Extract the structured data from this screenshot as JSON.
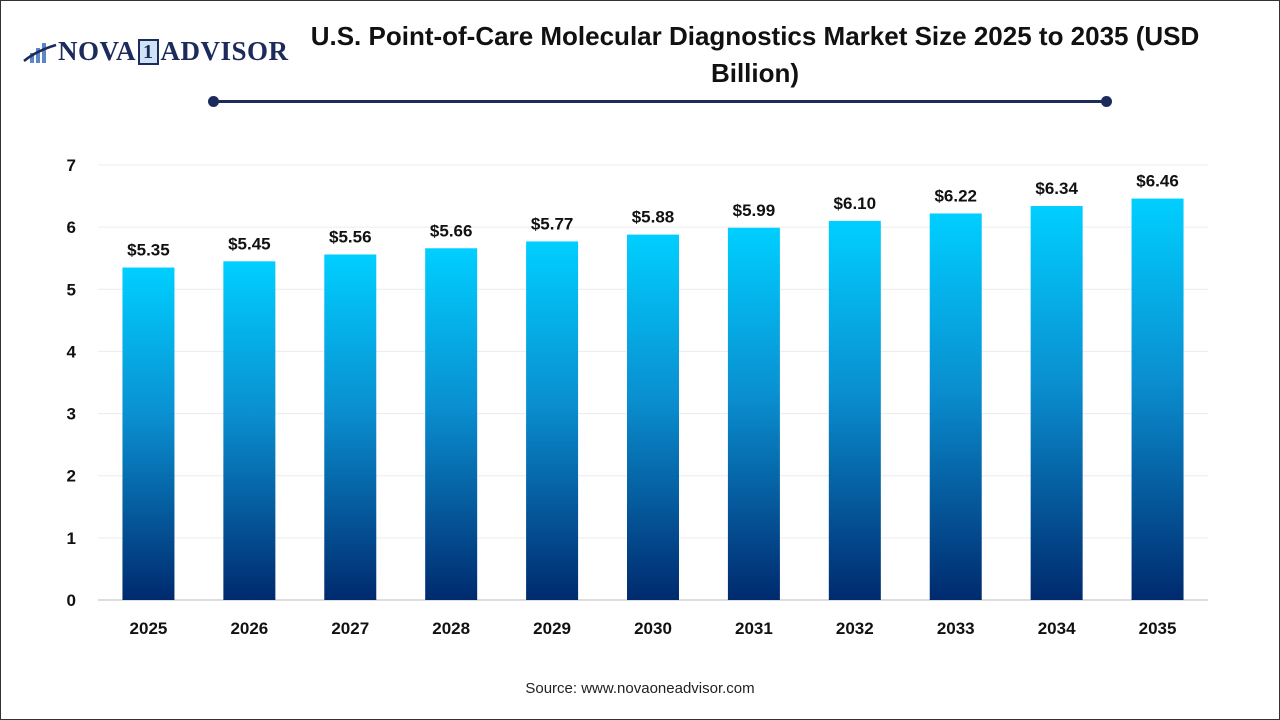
{
  "logo": {
    "text_left": "NOVA",
    "text_mark": "1",
    "text_right": "ADVISOR"
  },
  "chart_data": {
    "type": "bar",
    "title": "U.S. Point-of-Care Molecular Diagnostics Market Size 2025 to 2035 (USD Billion)",
    "categories": [
      "2025",
      "2026",
      "2027",
      "2028",
      "2029",
      "2030",
      "2031",
      "2032",
      "2033",
      "2034",
      "2035"
    ],
    "values": [
      5.35,
      5.45,
      5.56,
      5.66,
      5.77,
      5.88,
      5.99,
      6.1,
      6.22,
      6.34,
      6.46
    ],
    "data_labels": [
      "$5.35",
      "$5.45",
      "$5.56",
      "$5.66",
      "$5.77",
      "$5.88",
      "$5.99",
      "$6.10",
      "$6.22",
      "$6.34",
      "$6.46"
    ],
    "xlabel": "",
    "ylabel": "",
    "ylim": [
      0,
      7
    ],
    "yticks": [
      0,
      1,
      2,
      3,
      4,
      5,
      6,
      7
    ],
    "grid": true,
    "colors": {
      "bar_top": "#00cfff",
      "bar_bottom": "#002a6e",
      "accent": "#1d2a5c"
    }
  },
  "source": "Source: www.novaoneadvisor.com"
}
